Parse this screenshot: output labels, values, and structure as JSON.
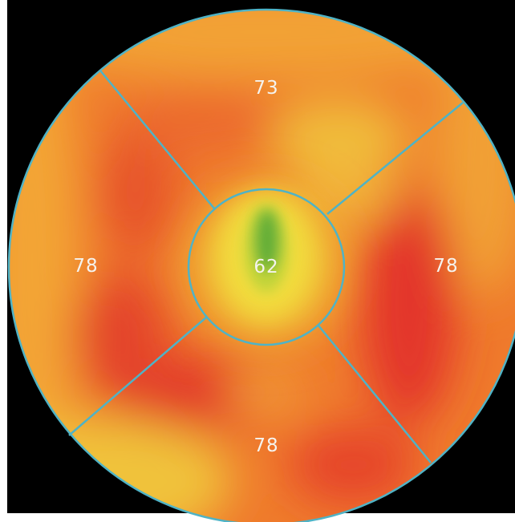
{
  "chart_data": {
    "type": "heatmap",
    "segments": [
      {
        "id": "superior",
        "value": "73"
      },
      {
        "id": "left",
        "value": "78"
      },
      {
        "id": "right",
        "value": "78"
      },
      {
        "id": "inferior",
        "value": "78"
      },
      {
        "id": "center",
        "value": "62"
      }
    ],
    "colors": {
      "background": "#000000",
      "border": "#4fb3c6",
      "low": "#4aa83a",
      "mid": "#f0d43a",
      "high": "#e23a28",
      "label": "#f5f3ee"
    }
  }
}
